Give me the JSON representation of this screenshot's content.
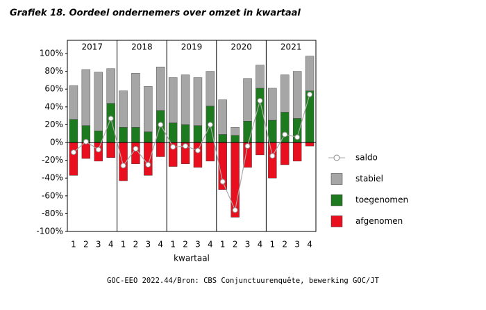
{
  "chart_data": {
    "type": "bar",
    "title": "Grafiek 18. Oordeel ondernemers over omzet in kwartaal",
    "source": "GOC-EEO 2022.44/Bron: CBS Conjunctuurenquête, bewerking GOC/JT",
    "x_label": "kwartaal",
    "years": [
      "2017",
      "2018",
      "2019",
      "2020",
      "2021"
    ],
    "categories": [
      "1",
      "2",
      "3",
      "4",
      "1",
      "2",
      "3",
      "4",
      "1",
      "2",
      "3",
      "4",
      "1",
      "2",
      "3",
      "4",
      "1",
      "2",
      "3",
      "4"
    ],
    "series": [
      {
        "name": "saldo",
        "color": "#aaaaaa",
        "kind": "line",
        "values": [
          -11,
          1,
          -8,
          27,
          -26,
          -7,
          -25,
          20,
          -5,
          -4,
          -9,
          20,
          -44,
          -76,
          -4,
          47,
          -15,
          9,
          6,
          54
        ]
      },
      {
        "name": "stabiel",
        "color": "#a6a6a6",
        "values": [
          38,
          63,
          66,
          39,
          41,
          61,
          51,
          49,
          51,
          56,
          54,
          39,
          39,
          9,
          48,
          26,
          36,
          42,
          53,
          39
        ]
      },
      {
        "name": "toegenomen",
        "color": "#1e7a1e",
        "values": [
          26,
          19,
          13,
          44,
          17,
          17,
          12,
          36,
          22,
          20,
          19,
          41,
          9,
          8,
          24,
          61,
          25,
          34,
          27,
          58
        ]
      },
      {
        "name": "afgenomen",
        "color": "#e8101e",
        "values": [
          -37,
          -18,
          -21,
          -17,
          -43,
          -24,
          -37,
          -16,
          -27,
          -24,
          -28,
          -21,
          -53,
          -84,
          -28,
          -14,
          -40,
          -25,
          -21,
          -4
        ]
      }
    ],
    "ylim": [
      -100,
      100
    ],
    "yticks": [
      {
        "value": 100,
        "label": "100%"
      },
      {
        "value": 80,
        "label": "80%"
      },
      {
        "value": 60,
        "label": "60%"
      },
      {
        "value": 40,
        "label": "40%"
      },
      {
        "value": 20,
        "label": "20%"
      },
      {
        "value": 0,
        "label": "0%"
      },
      {
        "value": -20,
        "label": "-20%"
      },
      {
        "value": -40,
        "label": "-40%"
      },
      {
        "value": -60,
        "label": "-60%"
      },
      {
        "value": -80,
        "label": "-80%"
      },
      {
        "value": -100,
        "label": "-100%"
      }
    ],
    "grid": false
  }
}
